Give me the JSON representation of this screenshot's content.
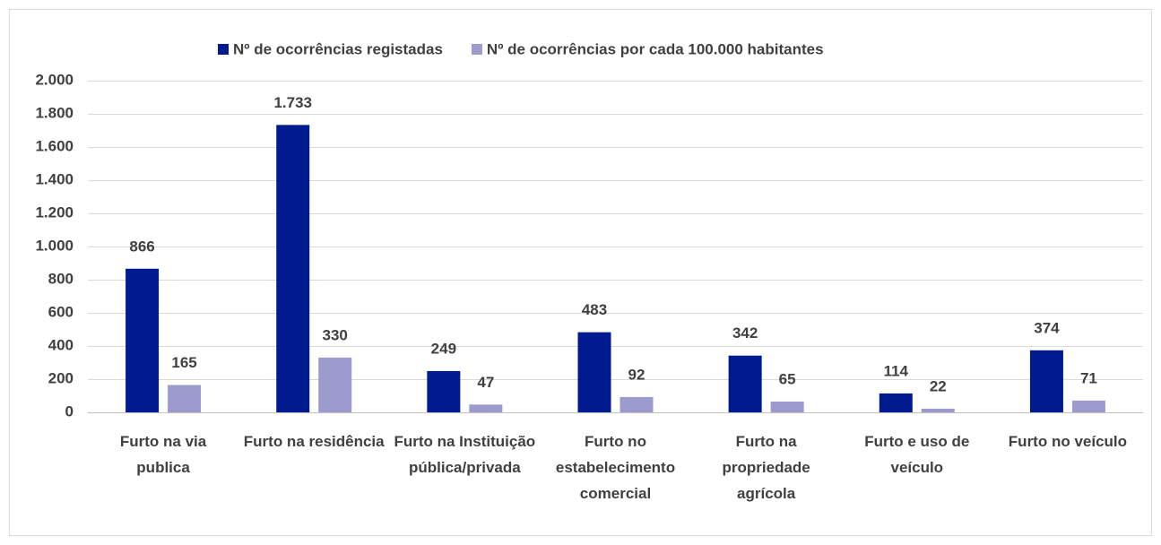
{
  "chart_data": {
    "type": "bar",
    "categories": [
      "Furto na via publica",
      "Furto na residência",
      "Furto na Instituição pública/privada",
      "Furto no estabelecimento comercial",
      "Furto na propriedade agrícola",
      "Furto e uso de veículo",
      "Furto no veículo"
    ],
    "series": [
      {
        "name": "Nº de ocorrências registadas",
        "color": "#001a8f",
        "values": [
          866,
          1733,
          249,
          483,
          342,
          114,
          374
        ],
        "value_labels": [
          "866",
          "1.733",
          "249",
          "483",
          "342",
          "114",
          "374"
        ]
      },
      {
        "name": "Nº de ocorrências por cada 100.000 habitantes",
        "color": "#9d9bcd",
        "values": [
          165,
          330,
          47,
          92,
          65,
          22,
          71
        ]
      }
    ],
    "ylim": [
      0,
      2000
    ],
    "yticks": [
      0,
      200,
      400,
      600,
      800,
      {
        "value": 1000,
        "label": "1.000"
      },
      {
        "value": 1200,
        "label": "1.200"
      },
      {
        "value": 1400,
        "label": "1.400"
      },
      {
        "value": 1600,
        "label": "1.600"
      },
      {
        "value": 1800,
        "label": "1.800"
      },
      {
        "value": 2000,
        "label": "2.000"
      }
    ],
    "grid": true,
    "legend": "top"
  }
}
